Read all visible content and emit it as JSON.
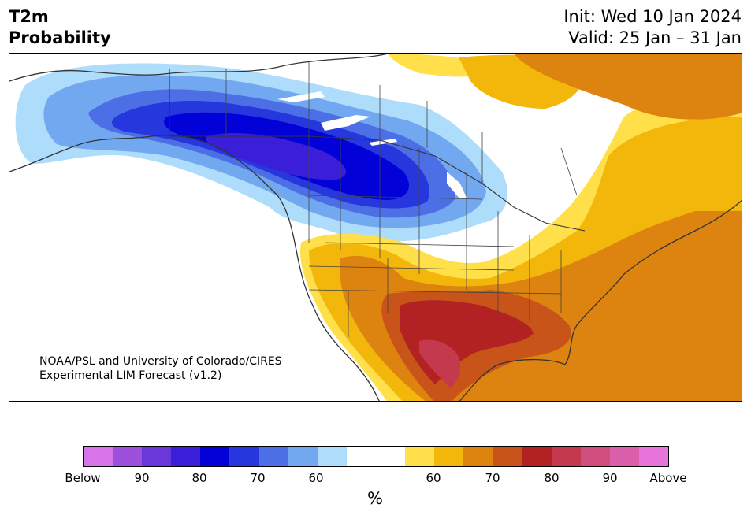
{
  "title": {
    "left_line1": "T2m",
    "left_line2": "Probability",
    "right_line1": "Init: Wed 10 Jan 2024",
    "right_line2": "Valid: 25 Jan – 31 Jan"
  },
  "credit": {
    "line1": "NOAA/PSL and University of Colorado/CIRES",
    "line2": "Experimental LIM Forecast (v1.2)"
  },
  "colorbar": {
    "colors": [
      "#d874ea",
      "#9d50db",
      "#6a38d8",
      "#3a1ed8",
      "#0202d8",
      "#2537dd",
      "#4d6fe5",
      "#71a8f0",
      "#aedcfb",
      "#ffffff",
      "#ffffff",
      "#ffe04a",
      "#f2b70a",
      "#dd8410",
      "#c9541a",
      "#b32222",
      "#c5394e",
      "#cf4e7e",
      "#da60ab",
      "#e775db"
    ],
    "labels": [
      "Below",
      "90",
      "80",
      "70",
      "60",
      "60",
      "70",
      "80",
      "90",
      "Above"
    ],
    "unit": "%"
  }
}
